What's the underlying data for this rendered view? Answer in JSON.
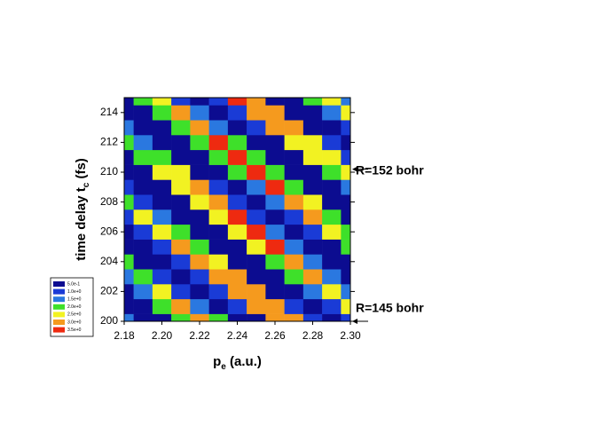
{
  "chart_data": {
    "type": "contour",
    "xlabel": [
      "p",
      "e",
      " (a.u.)"
    ],
    "ylabel": [
      "time delay t",
      "c",
      " (fs)"
    ],
    "x": [
      2.18,
      2.19,
      2.2,
      2.21,
      2.22,
      2.23,
      2.24,
      2.25,
      2.26,
      2.27,
      2.28,
      2.29,
      2.3
    ],
    "y": [
      200,
      201,
      202,
      203,
      204,
      205,
      206,
      207,
      208,
      209,
      210,
      211,
      212,
      213,
      214,
      215
    ],
    "z": [
      [
        1.7,
        0.2,
        0.3,
        1.8,
        2.0,
        0.6,
        0.1,
        1.4,
        2.2,
        1.1,
        0.0,
        0.9,
        2.1,
        1.6,
        0.2,
        0.4
      ],
      [
        0.4,
        0.3,
        1.9,
        2.4,
        0.9,
        0.0,
        1.4,
        2.5,
        1.4,
        0.0,
        0.9,
        2.4,
        1.9,
        0.3,
        0.4,
        2.0
      ],
      [
        0.2,
        2.0,
        2.7,
        1.1,
        0.0,
        1.4,
        2.8,
        1.7,
        0.1,
        0.8,
        2.6,
        2.3,
        0.4,
        0.3,
        2.2,
        2.7
      ],
      [
        2.0,
        3.1,
        1.4,
        0.0,
        1.4,
        3.1,
        2.1,
        0.2,
        0.7,
        2.8,
        2.6,
        0.6,
        0.2,
        2.2,
        3.0,
        1.2
      ],
      [
        3.4,
        1.7,
        0.0,
        1.3,
        3.3,
        2.4,
        0.3,
        0.6,
        2.9,
        3.0,
        0.8,
        0.2,
        2.3,
        3.4,
        1.5,
        0.0
      ],
      [
        2.1,
        0.0,
        1.2,
        3.4,
        2.8,
        0.4,
        0.5,
        2.9,
        3.3,
        1.0,
        0.1,
        2.2,
        3.6,
        1.8,
        0.0,
        1.4
      ],
      [
        0.1,
        1.0,
        3.4,
        3.0,
        0.5,
        0.4,
        2.8,
        3.5,
        1.3,
        0.0,
        2.0,
        3.7,
        2.0,
        0.0,
        1.3,
        3.5
      ],
      [
        0.8,
        3.3,
        3.2,
        0.7,
        0.3,
        2.6,
        3.6,
        1.4,
        0.0,
        1.9,
        3.7,
        2.3,
        0.1,
        1.0,
        3.4,
        3.0
      ],
      [
        3.0,
        3.2,
        0.9,
        0.2,
        2.3,
        3.6,
        1.7,
        0.0,
        1.6,
        3.6,
        2.4,
        0.2,
        0.9,
        3.2,
        3.1,
        0.7
      ],
      [
        3.2,
        1.0,
        0.1,
        2.0,
        3.4,
        1.7,
        0.0,
        1.3,
        3.3,
        2.4,
        0.3,
        0.6,
        2.9,
        3.0,
        0.8,
        0.2
      ],
      [
        1.1,
        0.0,
        1.8,
        3.2,
        1.8,
        0.0,
        1.1,
        3.0,
        2.5,
        0.4,
        0.4,
        2.6,
        2.9,
        0.9,
        0.1,
        2.0
      ],
      [
        0.0,
        1.4,
        2.9,
        1.8,
        0.1,
        0.8,
        2.7,
        2.4,
        0.4,
        0.3,
        2.2,
        2.8,
        1.0,
        0.0,
        1.6,
        2.9
      ],
      [
        1.1,
        2.5,
        1.8,
        0.2,
        0.6,
        2.3,
        2.2,
        0.5,
        0.2,
        1.8,
        2.5,
        1.0,
        0.0,
        1.3,
        2.6,
        1.6
      ]
    ],
    "levels": [
      {
        "value": 0.5,
        "label": "5.0e-1"
      },
      {
        "value": 1.0,
        "label": "1.0e+0"
      },
      {
        "value": 1.5,
        "label": "1.5e+0"
      },
      {
        "value": 2.0,
        "label": "2.0e+0"
      },
      {
        "value": 2.5,
        "label": "2.5e+0"
      },
      {
        "value": 3.0,
        "label": "3.0e+0"
      },
      {
        "value": 3.5,
        "label": "3.5e+0"
      }
    ],
    "colors": [
      "#0c0c90",
      "#1a3bd6",
      "#2a78e0",
      "#3ee02a",
      "#f2f222",
      "#f59a1e",
      "#ee2a10"
    ],
    "xlim": [
      2.18,
      2.3
    ],
    "ylim": [
      200,
      215
    ],
    "xticks": [
      2.18,
      {
        "value": 2.2,
        "label": "2.20"
      },
      2.22,
      2.24,
      2.26,
      2.28,
      {
        "value": 2.3,
        "label": "2.30"
      }
    ],
    "yticks": [
      200,
      202,
      204,
      206,
      208,
      210,
      212,
      214
    ],
    "annotations": [
      {
        "text": "R=152 bohr",
        "y": 210.2
      },
      {
        "text": "R=145 bohr",
        "y": 200
      }
    ]
  }
}
